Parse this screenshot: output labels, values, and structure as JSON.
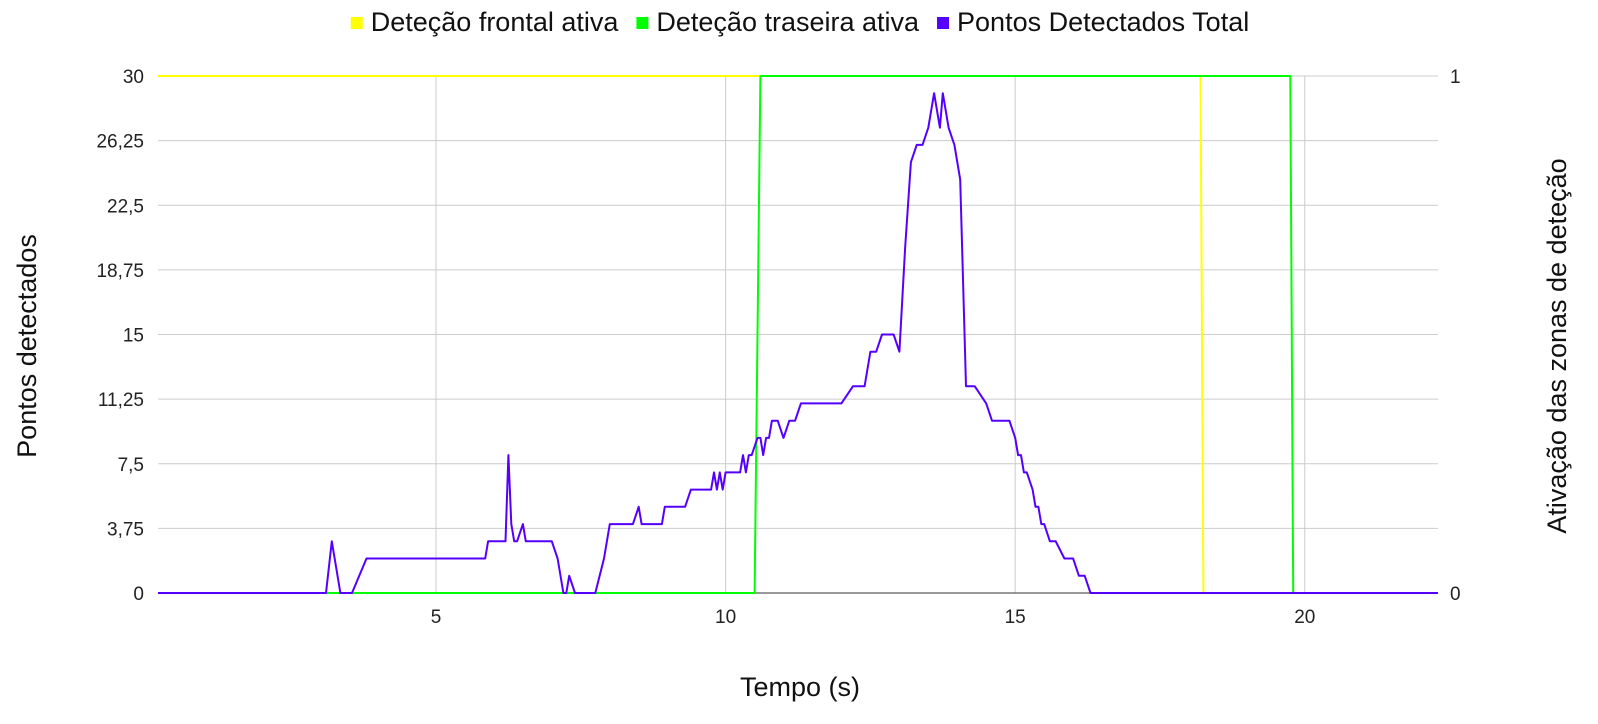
{
  "chart_data": {
    "type": "line",
    "xlabel": "Tempo (s)",
    "ylabel": "Pontos detectados",
    "y2label": "Ativação das zonas de deteção",
    "xlim": [
      0.2,
      22.3
    ],
    "ylim": [
      0,
      30
    ],
    "y2lim": [
      0,
      1
    ],
    "xticks": [
      5,
      10,
      15,
      20
    ],
    "xtick_labels": [
      "5",
      "10",
      "15",
      "20"
    ],
    "yticks": [
      0,
      3.75,
      7.5,
      11.25,
      15,
      18.75,
      22.5,
      26.25,
      30
    ],
    "ytick_labels": [
      "0",
      "3,75",
      "7,5",
      "11,25",
      "15",
      "18,75",
      "22,5",
      "26,25",
      "30"
    ],
    "y2ticks": [
      0,
      1
    ],
    "y2tick_labels": [
      "0",
      "1"
    ],
    "grid": true,
    "legend_position": "top",
    "series": [
      {
        "name": "Deteção frontal ativa",
        "color": "#ffff00",
        "axis": "right",
        "x": [
          0.2,
          18.2,
          18.25,
          22.3
        ],
        "y": [
          1,
          1,
          0,
          0
        ]
      },
      {
        "name": "Deteção traseira ativa",
        "color": "#00ff00",
        "axis": "right",
        "x": [
          0.2,
          10.5,
          10.6,
          19.75,
          19.8,
          22.3
        ],
        "y": [
          0,
          0,
          1,
          1,
          0,
          0
        ]
      },
      {
        "name": "Pontos Detectados Total",
        "color": "#5500ff",
        "axis": "left",
        "x": [
          0.2,
          3.1,
          3.2,
          3.35,
          3.55,
          3.8,
          4.5,
          5.0,
          5.5,
          5.85,
          5.9,
          6.2,
          6.25,
          6.3,
          6.35,
          6.4,
          6.5,
          6.55,
          6.6,
          7.0,
          7.1,
          7.2,
          7.25,
          7.3,
          7.4,
          7.5,
          7.75,
          7.9,
          8.0,
          8.1,
          8.4,
          8.5,
          8.55,
          8.6,
          8.9,
          8.95,
          9.0,
          9.3,
          9.4,
          9.5,
          9.75,
          9.8,
          9.85,
          9.9,
          9.95,
          10.0,
          10.1,
          10.25,
          10.3,
          10.35,
          10.4,
          10.45,
          10.55,
          10.6,
          10.65,
          10.7,
          10.75,
          10.8,
          10.9,
          11.0,
          11.1,
          11.2,
          11.3,
          11.4,
          11.6,
          11.8,
          12.0,
          12.2,
          12.4,
          12.5,
          12.6,
          12.7,
          12.8,
          12.9,
          13.0,
          13.1,
          13.2,
          13.3,
          13.4,
          13.5,
          13.6,
          13.7,
          13.75,
          13.85,
          13.95,
          14.05,
          14.15,
          14.2,
          14.25,
          14.3,
          14.5,
          14.6,
          14.7,
          14.9,
          15.0,
          15.05,
          15.1,
          15.15,
          15.2,
          15.3,
          15.35,
          15.4,
          15.45,
          15.5,
          15.6,
          15.7,
          15.85,
          15.9,
          16.0,
          16.1,
          16.2,
          16.3,
          16.35,
          16.5,
          22.3
        ],
        "y": [
          0,
          0,
          3,
          0,
          0,
          2,
          2,
          2,
          2,
          2,
          3,
          3,
          8,
          4,
          3,
          3,
          4,
          3,
          3,
          3,
          2,
          0,
          0,
          1,
          0,
          0,
          0,
          2,
          4,
          4,
          4,
          5,
          4,
          4,
          4,
          5,
          5,
          5,
          6,
          6,
          6,
          7,
          6,
          7,
          6,
          7,
          7,
          7,
          8,
          7,
          8,
          8,
          9,
          9,
          8,
          9,
          9,
          10,
          10,
          9,
          10,
          10,
          11,
          11,
          11,
          11,
          11,
          12,
          12,
          14,
          14,
          15,
          15,
          15,
          14,
          20,
          25,
          26,
          26,
          27,
          29,
          27,
          29,
          27,
          26,
          24,
          12,
          12,
          12,
          12,
          11,
          10,
          10,
          10,
          9,
          8,
          8,
          7,
          7,
          6,
          5,
          5,
          4,
          4,
          3,
          3,
          2,
          2,
          2,
          1,
          1,
          0,
          0,
          0,
          0
        ]
      }
    ]
  }
}
